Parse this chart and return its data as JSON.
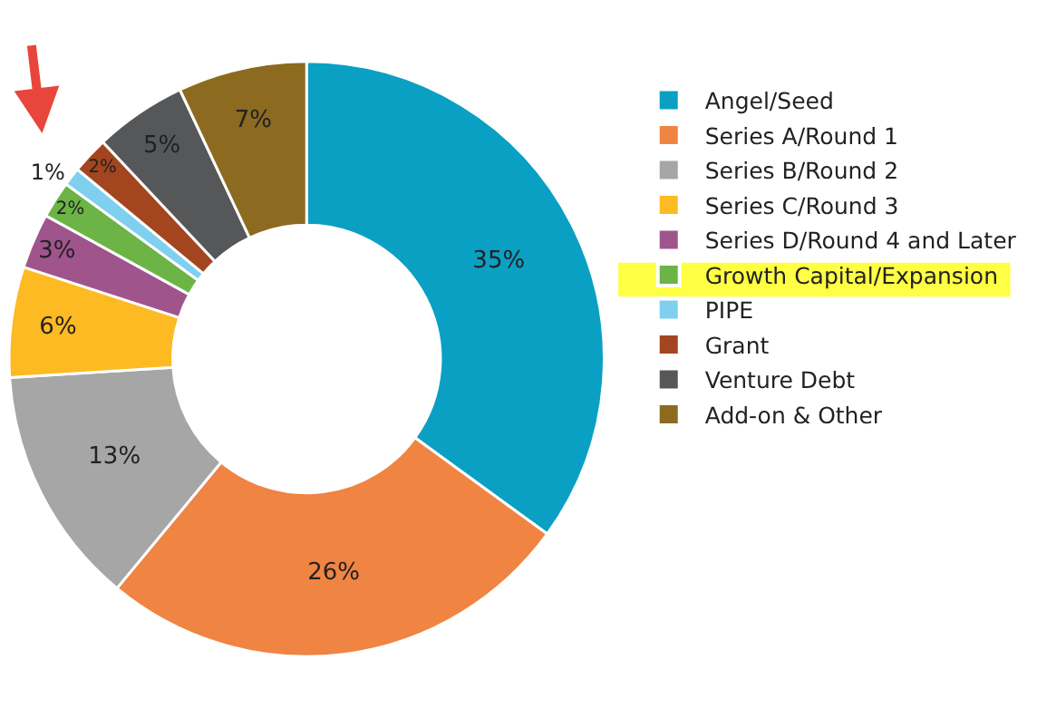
{
  "chart_data": {
    "type": "donut",
    "categories": [
      "Angel/Seed",
      "Series A/Round 1",
      "Series B/Round 2",
      "Series C/Round 3",
      "Series D/Round 4 and Later",
      "Growth Capital/Expansion",
      "PIPE",
      "Grant",
      "Venture Debt",
      "Add-on & Other"
    ],
    "values": [
      35,
      26,
      13,
      6,
      3,
      2,
      1,
      2,
      5,
      7
    ],
    "colors": [
      "#0aa0c4",
      "#f08442",
      "#a6a6a6",
      "#fdba22",
      "#a0548c",
      "#6cb445",
      "#7fd0ee",
      "#a3461f",
      "#555759",
      "#8c6a1f"
    ],
    "value_labels": [
      "35%",
      "26%",
      "13%",
      "6%",
      "3%",
      "2%",
      "1%",
      "2%",
      "5%",
      "7%"
    ],
    "legend": "right"
  }
}
